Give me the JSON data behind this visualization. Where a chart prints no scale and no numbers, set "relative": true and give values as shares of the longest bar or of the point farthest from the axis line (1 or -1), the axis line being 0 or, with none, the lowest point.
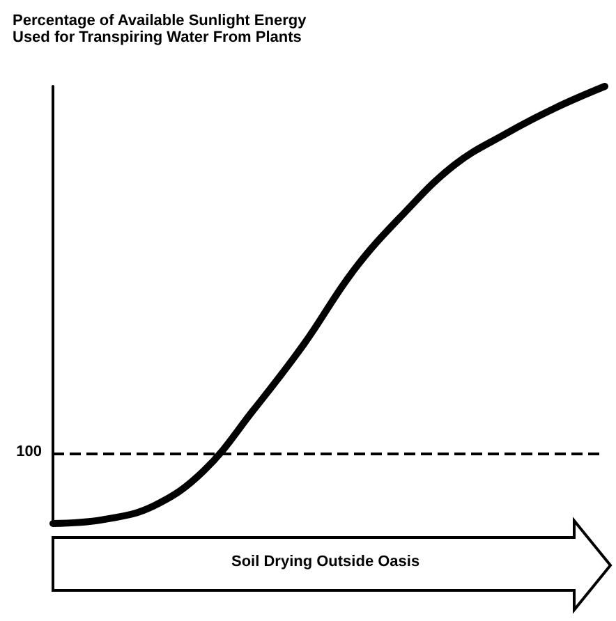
{
  "chart_data": {
    "type": "line",
    "title": "Percentage of Available Sunlight Energy\nUsed for Transpiring Water From Plants",
    "xlabel": "Soil Drying Outside Oasis",
    "relative": true,
    "marker": "none",
    "categories": [
      null,
      null,
      null,
      null,
      null,
      null,
      null,
      null,
      null,
      null,
      null,
      null
    ],
    "series": [
      {
        "color": "#000000",
        "values": [
          0,
          0.009,
          0.04,
          0.12,
          0.26,
          0.41,
          0.58,
          0.71,
          0.82,
          0.89,
          0.95,
          1
        ]
      }
    ],
    "annotations": [
      "100"
    ],
    "ref_lines": [
      {
        "axis": "y",
        "value": 0.16,
        "line_style": "dashed",
        "color": "#000000"
      }
    ]
  }
}
